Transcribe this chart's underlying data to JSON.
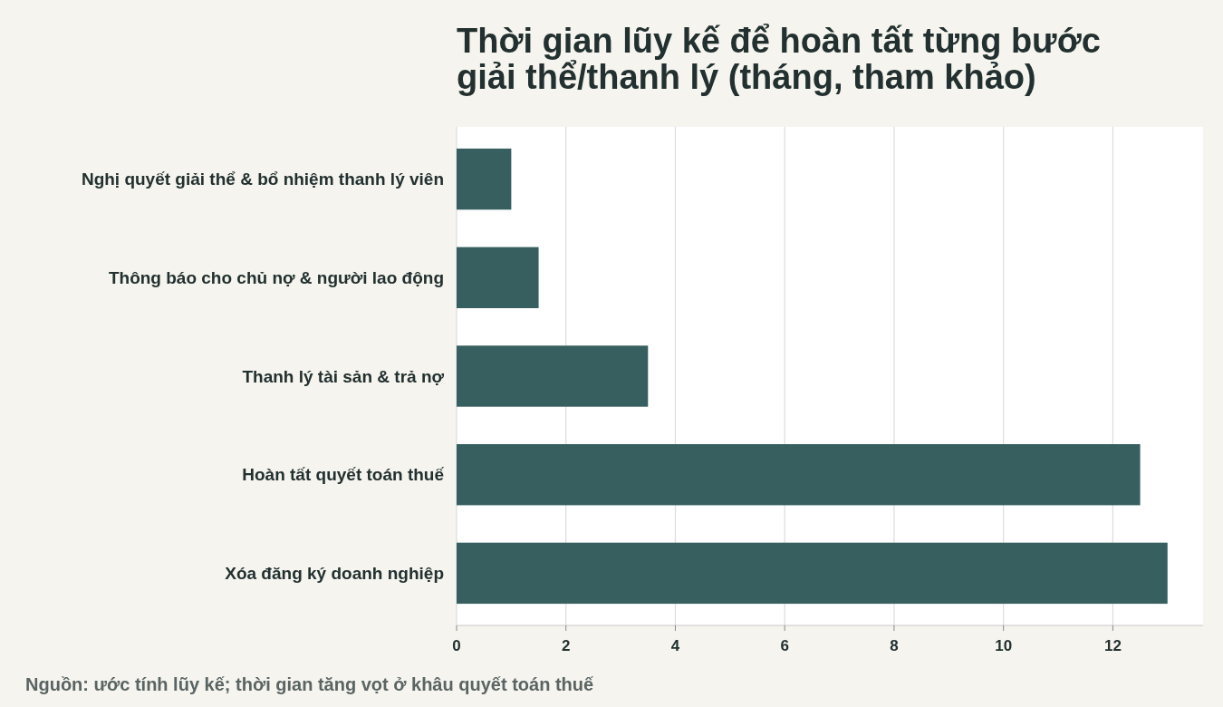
{
  "chart_data": {
    "type": "bar",
    "orientation": "horizontal",
    "title": "Thời gian lũy kế để hoàn tất từng bước giải thể/thanh lý (tháng, tham khảo)",
    "categories": [
      "Nghị quyết giải thể & bổ nhiệm thanh lý viên",
      "Thông báo cho chủ nợ & người lao động",
      "Thanh lý tài sản & trả nợ",
      "Hoàn tất quyết toán thuế",
      "Xóa đăng ký doanh nghiệp"
    ],
    "values": [
      1,
      1.5,
      3.5,
      12.5,
      13
    ],
    "color": "#375f5f",
    "xlim": [
      0,
      13.65
    ],
    "xticks": [
      0,
      2,
      4,
      6,
      8,
      10,
      12
    ],
    "grid": "x",
    "annotations": [
      "Nguồn: ước tính lũy kế; thời gian tăng vọt ở khâu quyết toán thuế"
    ]
  }
}
